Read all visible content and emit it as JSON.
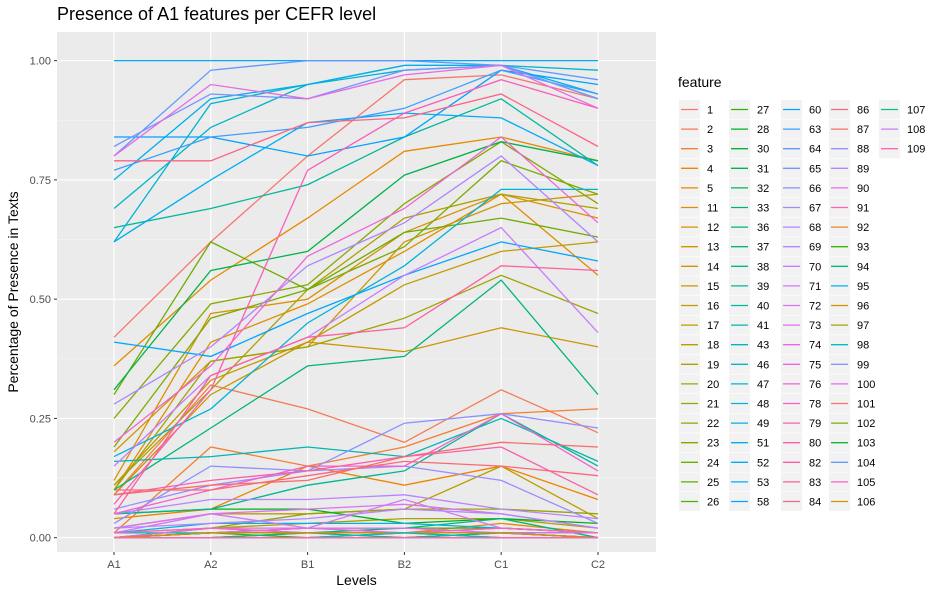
{
  "chart_data": {
    "type": "line",
    "title": "Presence of A1 features per CEFR level",
    "xlabel": "Levels",
    "ylabel": "Percentage of Presence in Texts",
    "categories": [
      "A1",
      "A2",
      "B1",
      "B2",
      "C1",
      "C2"
    ],
    "y_ticks": [
      "0.00",
      "0.25",
      "0.50",
      "0.75",
      "1.00"
    ],
    "ylim": [
      -0.03,
      1.06
    ],
    "grid": true,
    "legend": {
      "title": "feature",
      "position": "right",
      "columns": 5
    },
    "series": [
      {
        "name": "1",
        "color": "#F8766D",
        "values": [
          0.42,
          0.62,
          0.8,
          0.96,
          0.97,
          0.92
        ]
      },
      {
        "name": "2",
        "color": "#F67B51",
        "values": [
          0.09,
          0.32,
          0.27,
          0.2,
          0.31,
          0.22
        ]
      },
      {
        "name": "3",
        "color": "#F37F32",
        "values": [
          0.01,
          0.19,
          0.15,
          0.19,
          0.26,
          0.27
        ]
      },
      {
        "name": "4",
        "color": "#EF8300",
        "values": [
          0.04,
          0.06,
          0.15,
          0.11,
          0.15,
          0.08
        ]
      },
      {
        "name": "5",
        "color": "#EA8700",
        "values": [
          0.0,
          0.01,
          0.02,
          0.01,
          0.03,
          0.01
        ]
      },
      {
        "name": "11",
        "color": "#E58A00",
        "values": [
          0.36,
          0.54,
          0.67,
          0.81,
          0.84,
          0.79
        ]
      },
      {
        "name": "12",
        "color": "#DF8E00",
        "values": [
          0.1,
          0.41,
          0.49,
          0.6,
          0.72,
          0.55
        ]
      },
      {
        "name": "13",
        "color": "#D99100",
        "values": [
          0.12,
          0.47,
          0.5,
          0.64,
          0.72,
          0.67
        ]
      },
      {
        "name": "14",
        "color": "#D29400",
        "values": [
          0.18,
          0.37,
          0.4,
          0.62,
          0.7,
          0.72
        ]
      },
      {
        "name": "15",
        "color": "#CB9700",
        "values": [
          0.09,
          0.3,
          0.41,
          0.39,
          0.44,
          0.4
        ]
      },
      {
        "name": "16",
        "color": "#C39A00",
        "values": [
          0.11,
          0.33,
          0.41,
          0.53,
          0.6,
          0.62
        ]
      },
      {
        "name": "17",
        "color": "#BB9D00",
        "values": [
          0.02,
          0.05,
          0.05,
          0.06,
          0.15,
          0.04
        ]
      },
      {
        "name": "18",
        "color": "#B29F00",
        "values": [
          0.11,
          0.31,
          0.52,
          0.67,
          0.72,
          0.69
        ]
      },
      {
        "name": "19",
        "color": "#A9A200",
        "values": [
          0.0,
          0.02,
          0.03,
          0.04,
          0.04,
          0.02
        ]
      },
      {
        "name": "20",
        "color": "#9FA400",
        "values": [
          0.1,
          0.37,
          0.4,
          0.46,
          0.55,
          0.47
        ]
      },
      {
        "name": "21",
        "color": "#94A600",
        "values": [
          0.01,
          0.02,
          0.05,
          0.06,
          0.06,
          0.05
        ]
      },
      {
        "name": "22",
        "color": "#89A800",
        "values": [
          0.25,
          0.49,
          0.53,
          0.7,
          0.83,
          0.7
        ]
      },
      {
        "name": "23",
        "color": "#7CAA00",
        "values": [
          0.19,
          0.46,
          0.52,
          0.61,
          0.79,
          0.72
        ]
      },
      {
        "name": "24",
        "color": "#6EAB00",
        "values": [
          0.3,
          0.62,
          0.52,
          0.64,
          0.67,
          0.63
        ]
      },
      {
        "name": "25",
        "color": "#5EAD00",
        "values": [
          0.0,
          0.01,
          0.01,
          0.01,
          0.01,
          0.0
        ]
      },
      {
        "name": "26",
        "color": "#4BAE00",
        "values": [
          0.0,
          0.01,
          0.02,
          0.02,
          0.02,
          0.01
        ]
      },
      {
        "name": "27",
        "color": "#31B000",
        "values": [
          0.0,
          0.0,
          0.01,
          0.01,
          0.01,
          0.0
        ]
      },
      {
        "name": "28",
        "color": "#00B11E",
        "values": [
          0.05,
          0.06,
          0.06,
          0.03,
          0.04,
          0.03
        ]
      },
      {
        "name": "30",
        "color": "#00B238",
        "values": [
          0.0,
          0.01,
          0.01,
          0.01,
          0.02,
          0.01
        ]
      },
      {
        "name": "31",
        "color": "#00B34B",
        "values": [
          0.31,
          0.56,
          0.6,
          0.76,
          0.83,
          0.79
        ]
      },
      {
        "name": "32",
        "color": "#00B45B",
        "values": [
          0.0,
          0.02,
          0.01,
          0.01,
          0.01,
          0.01
        ]
      },
      {
        "name": "33",
        "color": "#00B56A",
        "values": [
          0.0,
          0.0,
          0.0,
          0.0,
          0.0,
          0.0
        ]
      },
      {
        "name": "36",
        "color": "#00B677",
        "values": [
          0.1,
          0.23,
          0.36,
          0.38,
          0.54,
          0.3
        ]
      },
      {
        "name": "37",
        "color": "#00B684",
        "values": [
          0.0,
          0.01,
          0.01,
          0.02,
          0.04,
          0.0
        ]
      },
      {
        "name": "38",
        "color": "#00B790",
        "values": [
          0.05,
          0.06,
          0.11,
          0.14,
          0.26,
          0.15
        ]
      },
      {
        "name": "39",
        "color": "#00B79C",
        "values": [
          0.65,
          0.69,
          0.74,
          0.84,
          0.92,
          0.78
        ]
      },
      {
        "name": "40",
        "color": "#00B7A7",
        "values": [
          0.0,
          0.0,
          0.0,
          0.0,
          0.01,
          0.0
        ]
      },
      {
        "name": "41",
        "color": "#00B7B2",
        "values": [
          0.16,
          0.17,
          0.19,
          0.17,
          0.25,
          0.16
        ]
      },
      {
        "name": "43",
        "color": "#00B6BD",
        "values": [
          0.01,
          0.01,
          0.01,
          0.01,
          0.01,
          0.01
        ]
      },
      {
        "name": "46",
        "color": "#00B6C7",
        "values": [
          0.69,
          0.86,
          0.95,
          0.99,
          0.99,
          0.98
        ]
      },
      {
        "name": "47",
        "color": "#00B4D1",
        "values": [
          0.62,
          0.91,
          0.95,
          0.98,
          0.99,
          0.92
        ]
      },
      {
        "name": "48",
        "color": "#00B3DB",
        "values": [
          0.17,
          0.27,
          0.45,
          0.57,
          0.73,
          0.73
        ]
      },
      {
        "name": "49",
        "color": "#00B1E4",
        "values": [
          0.01,
          0.03,
          0.03,
          0.03,
          0.02,
          0.01
        ]
      },
      {
        "name": "51",
        "color": "#00AFEC",
        "values": [
          0.75,
          0.92,
          0.95,
          0.99,
          0.99,
          0.93
        ]
      },
      {
        "name": "52",
        "color": "#00ACF4",
        "values": [
          0.62,
          0.75,
          0.87,
          0.89,
          0.88,
          0.78
        ]
      },
      {
        "name": "53",
        "color": "#00A9FB",
        "values": [
          1.0,
          1.0,
          1.0,
          1.0,
          1.0,
          1.0
        ]
      },
      {
        "name": "58",
        "color": "#00A6FF",
        "values": [
          0.41,
          0.38,
          0.47,
          0.55,
          0.62,
          0.58
        ]
      },
      {
        "name": "60",
        "color": "#00A2FF",
        "values": [
          0.84,
          0.84,
          0.8,
          0.84,
          0.98,
          0.95
        ]
      },
      {
        "name": "63",
        "color": "#3E9EFF",
        "values": [
          0.77,
          0.84,
          0.86,
          0.9,
          0.98,
          0.93
        ]
      },
      {
        "name": "64",
        "color": "#5F99FF",
        "values": [
          0.8,
          0.98,
          1.0,
          1.0,
          0.99,
          0.96
        ]
      },
      {
        "name": "65",
        "color": "#7895FF",
        "values": [
          0.82,
          0.93,
          0.92,
          0.98,
          0.99,
          0.92
        ]
      },
      {
        "name": "66",
        "color": "#8C90FF",
        "values": [
          0.03,
          0.15,
          0.14,
          0.24,
          0.26,
          0.23
        ]
      },
      {
        "name": "67",
        "color": "#9D8BFF",
        "values": [
          0.06,
          0.11,
          0.14,
          0.15,
          0.12,
          0.03
        ]
      },
      {
        "name": "68",
        "color": "#AD86FF",
        "values": [
          0.28,
          0.4,
          0.57,
          0.66,
          0.8,
          0.62
        ]
      },
      {
        "name": "69",
        "color": "#BA82FF",
        "values": [
          0.05,
          0.08,
          0.08,
          0.09,
          0.06,
          0.04
        ]
      },
      {
        "name": "70",
        "color": "#C77CFF",
        "values": [
          0.15,
          0.34,
          0.42,
          0.55,
          0.65,
          0.43
        ]
      },
      {
        "name": "71",
        "color": "#D177FA",
        "values": [
          0.01,
          0.05,
          0.02,
          0.08,
          0.02,
          0.01
        ]
      },
      {
        "name": "72",
        "color": "#DA72F3",
        "values": [
          0.02,
          0.05,
          0.06,
          0.07,
          0.05,
          0.02
        ]
      },
      {
        "name": "73",
        "color": "#E26DEC",
        "values": [
          0.0,
          0.02,
          0.02,
          0.01,
          0.01,
          0.0
        ]
      },
      {
        "name": "74",
        "color": "#E968E3",
        "values": [
          0.8,
          0.95,
          0.92,
          0.97,
          0.99,
          0.9
        ]
      },
      {
        "name": "75",
        "color": "#EF64DA",
        "values": [
          0.2,
          0.36,
          0.59,
          0.69,
          0.84,
          0.66
        ]
      },
      {
        "name": "76",
        "color": "#F461CF",
        "values": [
          0.05,
          0.1,
          0.15,
          0.15,
          0.26,
          0.14
        ]
      },
      {
        "name": "78",
        "color": "#F75FC4",
        "values": [
          0.0,
          0.0,
          0.0,
          0.0,
          0.0,
          0.0
        ]
      },
      {
        "name": "79",
        "color": "#FA5EB8",
        "values": [
          0.07,
          0.31,
          0.77,
          0.89,
          0.96,
          0.9
        ]
      },
      {
        "name": "80",
        "color": "#FC5EAC",
        "values": [
          0.09,
          0.12,
          0.14,
          0.17,
          0.19,
          0.09
        ]
      },
      {
        "name": "82",
        "color": "#FD5FA0",
        "values": [
          0.05,
          0.34,
          0.42,
          0.44,
          0.57,
          0.56
        ]
      },
      {
        "name": "83",
        "color": "#FD6193",
        "values": [
          0.0,
          0.0,
          0.01,
          0.0,
          0.01,
          0.0
        ]
      },
      {
        "name": "84",
        "color": "#FC6486",
        "values": [
          0.79,
          0.79,
          0.87,
          0.88,
          0.93,
          0.82
        ]
      },
      {
        "name": "86",
        "color": "#FA6879",
        "values": [
          0.1,
          0.1,
          0.13,
          0.16,
          0.15,
          0.13
        ]
      },
      {
        "name": "87",
        "color": "#F86C6C",
        "values": [
          0.09,
          0.11,
          0.12,
          0.17,
          0.2,
          0.19
        ]
      },
      {
        "name": "88",
        "color": "#9590FF",
        "values": [
          0.0,
          0.0,
          0.0,
          0.01,
          0.01,
          0.0
        ]
      },
      {
        "name": "89",
        "color": "#B983FF",
        "values": [
          0.02,
          0.03,
          0.04,
          0.06,
          0.05,
          0.02
        ]
      },
      {
        "name": "90",
        "color": "#E76BF3",
        "values": [
          0.0,
          0.01,
          0.02,
          0.02,
          0.01,
          0.01
        ]
      },
      {
        "name": "91",
        "color": "#FF62BC",
        "values": [
          0.01,
          0.02,
          0.01,
          0.01,
          0.02,
          0.01
        ]
      },
      {
        "name": "92",
        "color": "#E88526",
        "values": [
          0.0,
          0.0,
          0.0,
          0.0,
          0.0,
          0.0
        ]
      },
      {
        "name": "93",
        "color": "#39B600",
        "values": [
          0.0,
          0.01,
          0.0,
          0.01,
          0.0,
          0.0
        ]
      },
      {
        "name": "94",
        "color": "#00BF7D",
        "values": [
          0.0,
          0.0,
          0.01,
          0.0,
          0.01,
          0.0
        ]
      },
      {
        "name": "95",
        "color": "#00B0F6",
        "values": [
          0.0,
          0.0,
          0.0,
          0.0,
          0.0,
          0.0
        ]
      },
      {
        "name": "96",
        "color": "#D89000",
        "values": [
          0.0,
          0.01,
          0.01,
          0.01,
          0.01,
          0.0
        ]
      },
      {
        "name": "97",
        "color": "#A3A500",
        "values": [
          0.0,
          0.0,
          0.0,
          0.0,
          0.0,
          0.0
        ]
      },
      {
        "name": "98",
        "color": "#00BFC4",
        "values": [
          0.0,
          0.0,
          0.0,
          0.01,
          0.0,
          0.0
        ]
      },
      {
        "name": "99",
        "color": "#9590FF",
        "values": [
          0.0,
          0.0,
          0.0,
          0.0,
          0.0,
          0.0
        ]
      },
      {
        "name": "100",
        "color": "#E76BF3",
        "values": [
          0.0,
          0.0,
          0.0,
          0.0,
          0.0,
          0.0
        ]
      },
      {
        "name": "101",
        "color": "#F8766D",
        "values": [
          0.0,
          0.0,
          0.0,
          0.0,
          0.0,
          0.0
        ]
      },
      {
        "name": "102",
        "color": "#7CAE00",
        "values": [
          0.0,
          0.0,
          0.0,
          0.0,
          0.0,
          0.0
        ]
      },
      {
        "name": "103",
        "color": "#00BA38",
        "values": [
          0.0,
          0.0,
          0.0,
          0.0,
          0.0,
          0.0
        ]
      },
      {
        "name": "104",
        "color": "#619CFF",
        "values": [
          0.0,
          0.0,
          0.0,
          0.0,
          0.0,
          0.0
        ]
      },
      {
        "name": "105",
        "color": "#FF61C3",
        "values": [
          0.0,
          0.0,
          0.0,
          0.0,
          0.0,
          0.0
        ]
      },
      {
        "name": "106",
        "color": "#DB8E00",
        "values": [
          0.0,
          0.0,
          0.0,
          0.0,
          0.0,
          0.0
        ]
      },
      {
        "name": "107",
        "color": "#00C08B",
        "values": [
          0.0,
          0.0,
          0.0,
          0.0,
          0.0,
          0.0
        ]
      },
      {
        "name": "108",
        "color": "#C77CFF",
        "values": [
          0.0,
          0.0,
          0.0,
          0.0,
          0.0,
          0.0
        ]
      },
      {
        "name": "109",
        "color": "#FF64B0",
        "values": [
          0.0,
          0.0,
          0.0,
          0.0,
          0.0,
          0.0
        ]
      }
    ]
  }
}
